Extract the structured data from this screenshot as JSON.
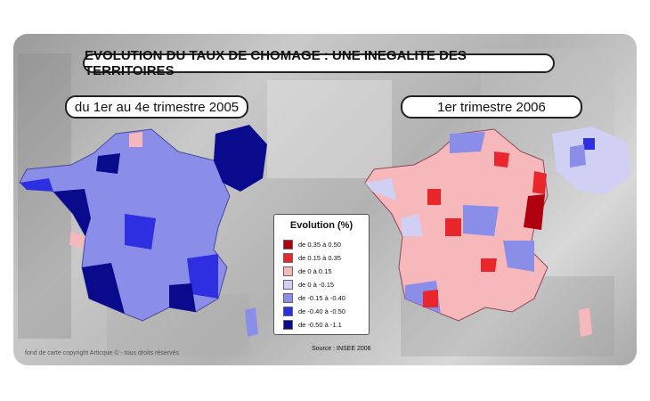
{
  "title": "EVOLUTION DU TAUX DE CHOMAGE : UNE INEGALITE DES TERRITOIRES",
  "subtitle_left": "du 1er au 4e trimestre 2005",
  "subtitle_right": "1er trimestre 2006",
  "legend": {
    "title": "Evolution (%)",
    "items": [
      {
        "label": "de 0.35 à 0.50",
        "color": "#b0000d"
      },
      {
        "label": "de 0.15 à 0.35",
        "color": "#e8262c"
      },
      {
        "label": "de 0 à 0.15",
        "color": "#f6b8bb"
      },
      {
        "label": "de 0 à -0.15",
        "color": "#cfd0f4"
      },
      {
        "label": "de -0.15 à -0.40",
        "color": "#8b8ee8"
      },
      {
        "label": "de -0.40 à -0.50",
        "color": "#2e2fe0"
      },
      {
        "label": "de -0.50 à -1.1",
        "color": "#0a0a8c"
      }
    ]
  },
  "source": "Source : INSEE 2006",
  "copyright": "fond de carte copyright Articque © - tous droits réservés"
}
